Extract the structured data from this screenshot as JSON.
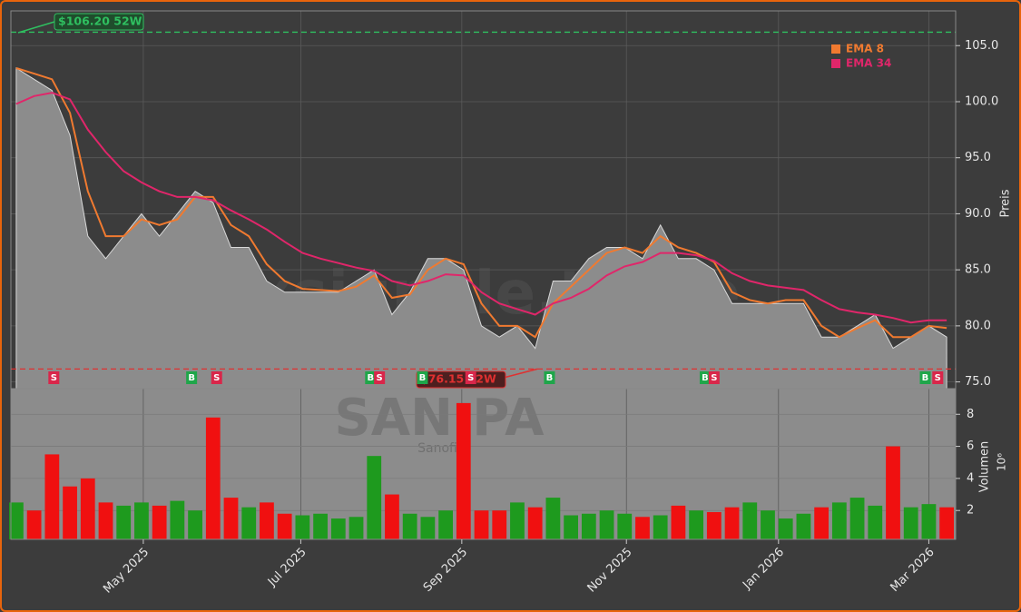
{
  "chart_data": {
    "type": "area",
    "watermark": "forexsignale.trade",
    "symbol": "SAN.PA",
    "name": "Sanofi",
    "y_label": "Preis",
    "x": [
      0,
      1,
      2,
      3,
      4,
      5,
      6,
      7,
      8,
      9,
      10,
      11,
      12,
      13,
      14,
      15,
      16,
      17,
      18,
      19,
      20,
      21,
      22,
      23,
      24,
      25,
      26,
      27,
      28,
      29,
      30,
      31,
      32,
      33,
      34,
      35,
      36,
      37,
      38,
      39,
      40,
      41,
      42,
      43,
      44,
      45,
      46,
      47,
      48,
      49,
      50,
      51,
      52
    ],
    "xlim": [
      -0.3,
      52.5
    ],
    "xticks": [
      {
        "value": 7.1,
        "label": "May 2025"
      },
      {
        "value": 15.9,
        "label": "Jul 2025"
      },
      {
        "value": 24.9,
        "label": "Sep 2025"
      },
      {
        "value": 34.1,
        "label": "Nov 2025"
      },
      {
        "value": 42.6,
        "label": "Jan 2026"
      },
      {
        "value": 51.0,
        "label": "Mar 2026"
      }
    ],
    "values": [
      103,
      102,
      101,
      97,
      88,
      86,
      88,
      90,
      88,
      90,
      92,
      91,
      87,
      87,
      84,
      83,
      83,
      83,
      83,
      84,
      85,
      81,
      83,
      86,
      86,
      85,
      80,
      79,
      80,
      78,
      84,
      84,
      86,
      87,
      87,
      86,
      89,
      86,
      86,
      85,
      82,
      82,
      82,
      82,
      82,
      79,
      79,
      80,
      81,
      78,
      79,
      80,
      79
    ],
    "area_color": "#8c8c8c",
    "ylim": [
      74.4,
      108.1
    ],
    "yticks": [
      {
        "value": 75,
        "label": "75.0"
      },
      {
        "value": 80,
        "label": "80.0"
      },
      {
        "value": 85,
        "label": "85.0"
      },
      {
        "value": 90,
        "label": "90.0"
      },
      {
        "value": 95,
        "label": "95.0"
      },
      {
        "value": 100,
        "label": "100.0"
      },
      {
        "value": 105,
        "label": "105.0"
      }
    ],
    "grid": true,
    "legend": "top-right",
    "series": [
      {
        "name": "EMA 8",
        "color": "#f07a30",
        "values": [
          103,
          102.5,
          102,
          99,
          92,
          88,
          88,
          89.5,
          89,
          89.5,
          91.5,
          91.5,
          89,
          88,
          85.5,
          84,
          83.3,
          83.2,
          83.1,
          83.5,
          84.5,
          82.5,
          82.8,
          85,
          86,
          85.5,
          82,
          80,
          80,
          79,
          82,
          83.5,
          85,
          86.5,
          87,
          86.5,
          88,
          87,
          86.5,
          85.7,
          83,
          82.3,
          82,
          82.3,
          82.3,
          80,
          79,
          79.8,
          80.5,
          79,
          79,
          80,
          79.8
        ]
      },
      {
        "name": "EMA 34",
        "color": "#e0266a",
        "values": [
          99.8,
          100.5,
          100.8,
          100.2,
          97.5,
          95.5,
          93.8,
          92.8,
          92,
          91.5,
          91.5,
          91.2,
          90.3,
          89.5,
          88.6,
          87.5,
          86.5,
          86,
          85.6,
          85.2,
          84.9,
          84,
          83.6,
          84,
          84.6,
          84.5,
          83,
          82,
          81.5,
          81,
          82,
          82.5,
          83.3,
          84.5,
          85.3,
          85.7,
          86.5,
          86.5,
          86.3,
          85.8,
          84.7,
          84,
          83.6,
          83.4,
          83.2,
          82.3,
          81.5,
          81.2,
          81,
          80.7,
          80.3,
          80.5,
          80.5
        ]
      }
    ],
    "high_52w": {
      "value": 106.2,
      "label": "$106.20 52W",
      "color": "#2fbf60"
    },
    "low_52w": {
      "value": 76.15,
      "label": "$76.15 52W",
      "color": "#e03030"
    },
    "buy_color": "#1fa64a",
    "sell_color": "#d9264a",
    "signals": [
      {
        "x": 2.1,
        "label": "S"
      },
      {
        "x": 9.8,
        "label": "B"
      },
      {
        "x": 11.2,
        "label": "S"
      },
      {
        "x": 19.8,
        "label": "B"
      },
      {
        "x": 20.3,
        "label": "S"
      },
      {
        "x": 22.7,
        "label": "B"
      },
      {
        "x": 25.4,
        "label": "S"
      },
      {
        "x": 29.8,
        "label": "B"
      },
      {
        "x": 38.5,
        "label": "B"
      },
      {
        "x": 39.0,
        "label": "S"
      },
      {
        "x": 50.8,
        "label": "B"
      },
      {
        "x": 51.5,
        "label": "S"
      }
    ],
    "volume": {
      "label": "Volumen",
      "exponent": "10⁶",
      "up_color": "#1e9a1e",
      "down_color": "#f01010",
      "values": [
        2.5,
        2.0,
        5.5,
        3.5,
        4.0,
        2.5,
        2.3,
        2.5,
        2.3,
        2.6,
        2.0,
        7.8,
        2.8,
        2.2,
        2.5,
        1.8,
        1.7,
        1.8,
        1.5,
        1.6,
        5.4,
        3.0,
        1.8,
        1.6,
        2.0,
        8.7,
        2.0,
        2.0,
        2.5,
        2.2,
        2.8,
        1.7,
        1.8,
        2.0,
        1.8,
        1.6,
        1.7,
        2.3,
        2.0,
        1.9,
        2.2,
        2.5,
        2.0,
        1.5,
        1.8,
        2.2,
        2.5,
        2.8,
        2.3,
        6.0,
        2.2,
        2.4,
        2.2
      ],
      "ylim": [
        0.2,
        9.6
      ],
      "yticks": [
        2,
        4,
        6,
        8
      ]
    }
  }
}
